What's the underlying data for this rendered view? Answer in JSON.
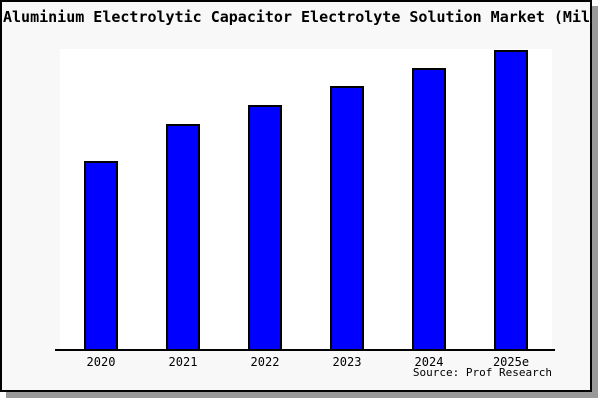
{
  "title": "Aluminium Electrolytic Capacitor Electrolyte Solution Market (Milli",
  "source_credit": "Source: Prof Research",
  "colors": {
    "bar_fill": "#0000ff",
    "bar_border": "#000000",
    "card_background": "#f8f8f8",
    "plot_background": "#ffffff",
    "axis": "#000000",
    "shadow": "#999999",
    "page_background": "#ffffff",
    "text": "#000000"
  },
  "chart_data": {
    "type": "bar",
    "title": "Aluminium Electrolytic Capacitor Electrolyte Solution Market (Milli",
    "categories": [
      "2020",
      "2021",
      "2022",
      "2023",
      "2024",
      "2025e"
    ],
    "values": [
      188,
      225,
      244,
      263,
      281,
      299
    ],
    "xlabel": "",
    "ylabel": "",
    "ylim": [
      0,
      300
    ],
    "grid": false,
    "legend": null,
    "y_axis_ticks_visible": false,
    "notes": "No y-axis scale shown; values are relative bar heights in plot units (plot height = 300)."
  }
}
